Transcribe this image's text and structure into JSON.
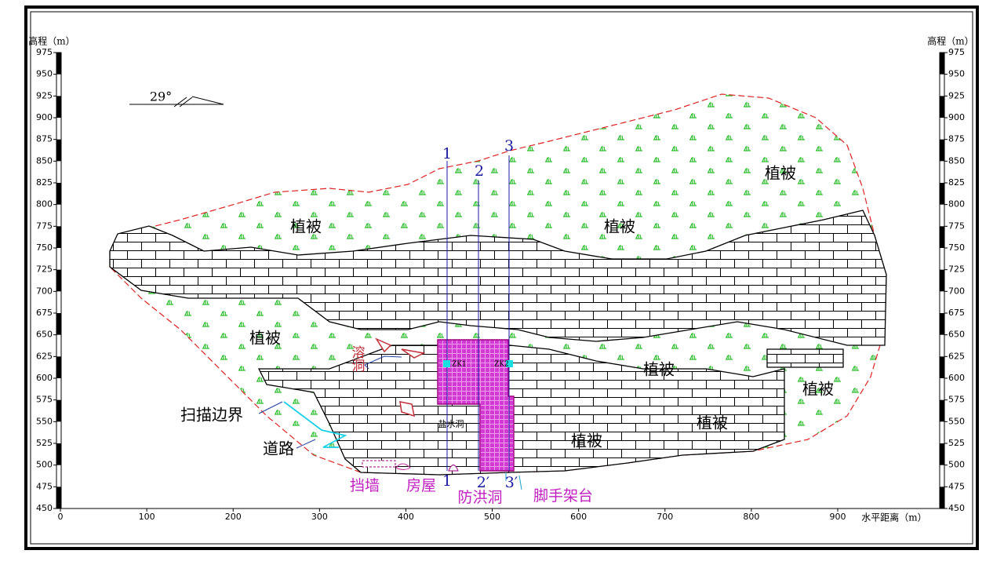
{
  "elevation_axis": {
    "title": "高程（m）",
    "ticks": [
      975,
      950,
      925,
      900,
      875,
      850,
      825,
      800,
      775,
      750,
      725,
      700,
      675,
      650,
      625,
      600,
      575,
      550,
      525,
      500,
      475,
      450
    ]
  },
  "x_axis": {
    "title": "水平距离（m）",
    "ticks": [
      0,
      100,
      200,
      300,
      400,
      500,
      600,
      700,
      800,
      900
    ]
  },
  "dip_label": "29°",
  "annotations": {
    "vegetation": [
      "植被",
      "植被",
      "植被",
      "植被",
      "植被",
      "植被",
      "植被",
      "植被"
    ],
    "karst_cave": "溶洞",
    "scan_boundary": "扫描边界",
    "road": "道路",
    "retaining_wall": "挡墙",
    "house": "房屋",
    "flood_tunnel": "防洪洞",
    "scaffold": "脚手架台",
    "water_cave": "盐水洞",
    "boreholes": [
      "ZK1",
      "ZK2"
    ]
  },
  "sections": [
    {
      "top": "1",
      "bottom": "1"
    },
    {
      "top": "2",
      "bottom": "2′"
    },
    {
      "top": "3",
      "bottom": "3′"
    }
  ]
}
